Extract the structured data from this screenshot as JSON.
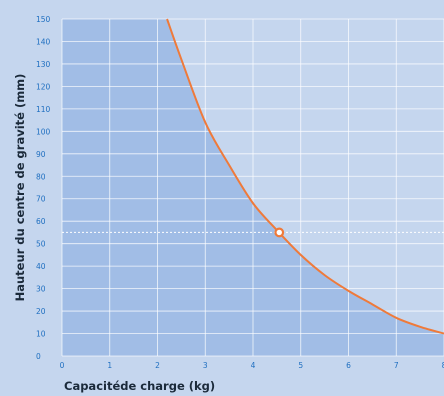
{
  "chart_data": {
    "type": "line",
    "title": "",
    "xlabel": "Capacitéde charge (kg)",
    "ylabel": "Hauteur du centre de gravité (mm)",
    "xlim": [
      0,
      8
    ],
    "ylim": [
      0,
      150
    ],
    "x_ticks": [
      "0",
      "1",
      "2",
      "3",
      "4",
      "5",
      "6",
      "7",
      "8"
    ],
    "y_ticks": [
      "0",
      "10",
      "20",
      "30",
      "40",
      "50",
      "60",
      "70",
      "80",
      "90",
      "100",
      "110",
      "120",
      "130",
      "140",
      "150"
    ],
    "grid": true,
    "series": [
      {
        "x": [
          2.2,
          2.5,
          3,
          3.5,
          4,
          4.5,
          5,
          5.5,
          6,
          6.5,
          7,
          7.5,
          8
        ],
        "y": [
          150,
          132,
          104,
          85,
          68,
          56,
          45,
          36,
          29,
          23,
          17,
          13,
          10
        ]
      }
    ],
    "highlight_point": {
      "x": 4.55,
      "y": 55
    },
    "colors": {
      "background": "#c5d6ee",
      "allowed_region": "#a1bde6",
      "curve": "#ef7a3a",
      "grid": "#ffffff",
      "tick_labels": "#1f6fc0",
      "axis_titles": "#1b2a3a"
    }
  }
}
